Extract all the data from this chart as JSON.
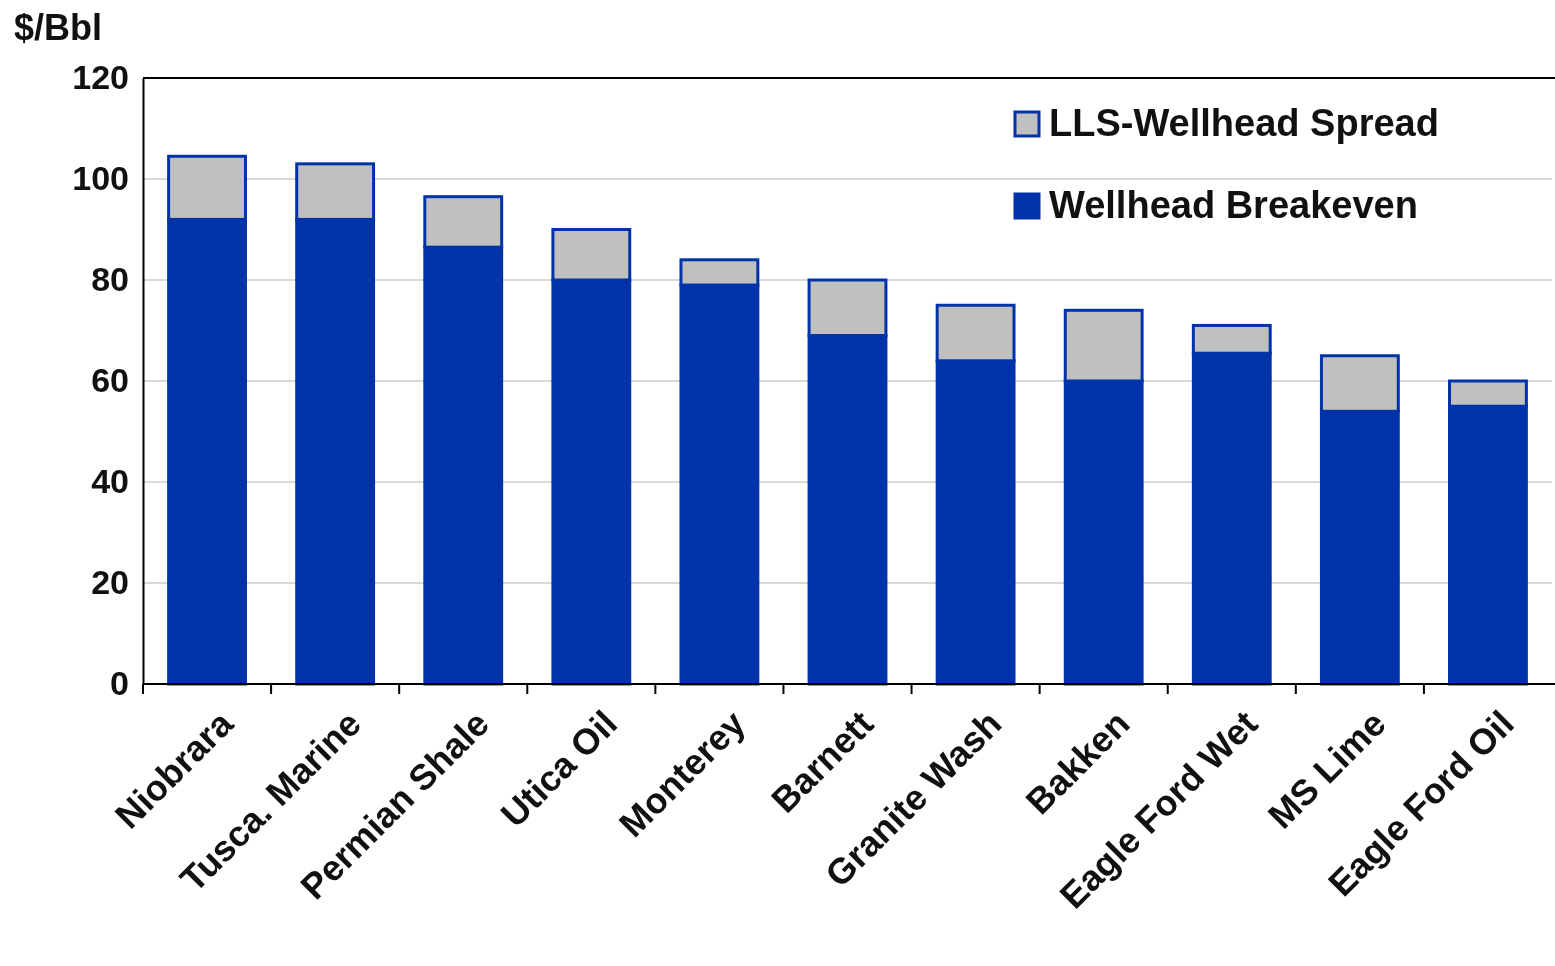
{
  "chart_data": {
    "type": "bar",
    "ylabel": "$/Bbl",
    "stacked": true,
    "categories": [
      "Niobrara",
      "Tusca. Marine",
      "Permian Shale",
      "Utica Oil",
      "Monterey",
      "Barnett",
      "Granite Wash",
      "Bakken",
      "Eagle Ford Wet",
      "MS Lime",
      "Eagle Ford Oil"
    ],
    "series": [
      {
        "name": "Wellhead Breakeven",
        "color": "#0033aa",
        "values": [
          92,
          92,
          86.5,
          80,
          79,
          69,
          64,
          60,
          65.5,
          54,
          55
        ]
      },
      {
        "name": "LLS-Wellhead Spread",
        "color": "#c0c0c0",
        "values": [
          12.5,
          11,
          10,
          10,
          5,
          11,
          11,
          14,
          5.5,
          11,
          5
        ]
      }
    ],
    "ylim": [
      0,
      120
    ],
    "yticks": [
      0,
      20,
      40,
      60,
      80,
      100,
      120
    ],
    "grid": "y",
    "legend": "top right"
  }
}
